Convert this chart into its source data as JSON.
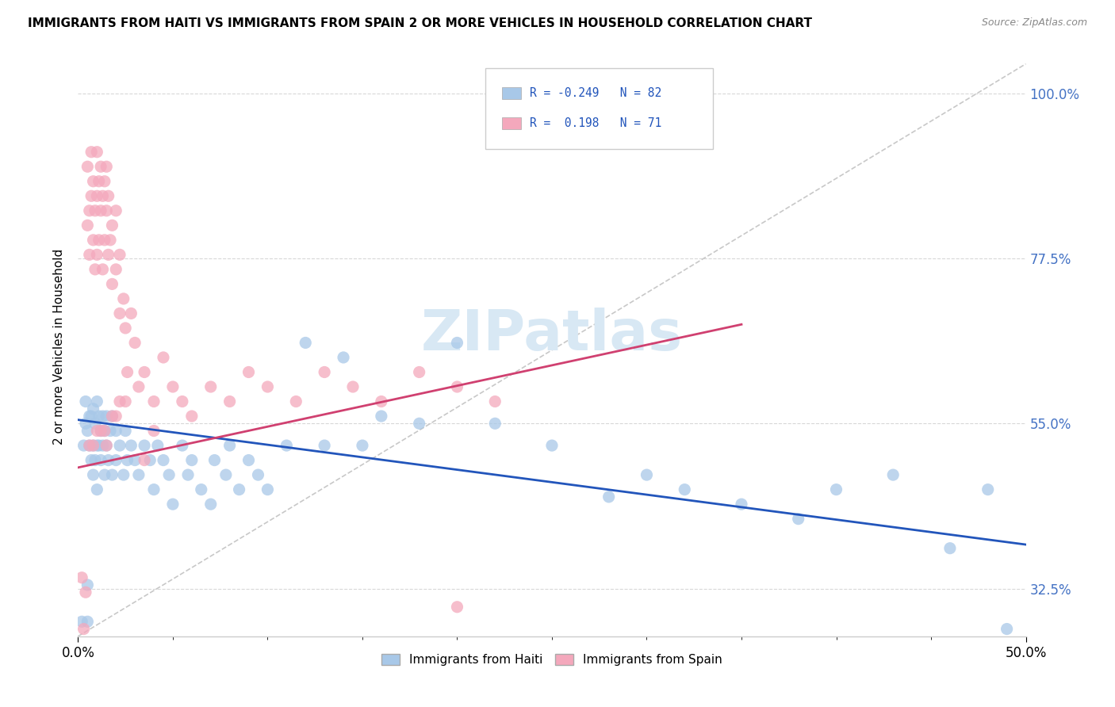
{
  "title": "IMMIGRANTS FROM HAITI VS IMMIGRANTS FROM SPAIN 2 OR MORE VEHICLES IN HOUSEHOLD CORRELATION CHART",
  "source": "Source: ZipAtlas.com",
  "ylabel_label": "2 or more Vehicles in Household",
  "legend_label1": "Immigrants from Haiti",
  "legend_label2": "Immigrants from Spain",
  "color_haiti": "#a8c8e8",
  "color_spain": "#f4a8bc",
  "color_haiti_line": "#2255bb",
  "color_spain_line": "#d04070",
  "color_diag_line": "#c8c8c8",
  "xlim_min": 0.0,
  "xlim_max": 0.5,
  "ylim_min": 0.26,
  "ylim_max": 1.05,
  "y_tick_vals": [
    0.325,
    0.55,
    0.775,
    1.0
  ],
  "y_tick_labels": [
    "32.5%",
    "55.0%",
    "77.5%",
    "100.0%"
  ],
  "x_tick_vals": [
    0.0,
    0.5
  ],
  "x_tick_labels": [
    "0.0%",
    "50.0%"
  ],
  "x_minor_ticks": [
    0.05,
    0.1,
    0.15,
    0.2,
    0.25,
    0.3,
    0.35,
    0.4,
    0.45
  ],
  "haiti_line_x": [
    0.0,
    0.5
  ],
  "haiti_line_y": [
    0.555,
    0.385
  ],
  "spain_line_x": [
    0.0,
    0.35
  ],
  "spain_line_y": [
    0.49,
    0.685
  ],
  "diag_line_x": [
    0.0,
    0.5
  ],
  "diag_line_y": [
    0.26,
    1.04
  ],
  "haiti_x": [
    0.002,
    0.003,
    0.004,
    0.004,
    0.005,
    0.005,
    0.005,
    0.006,
    0.006,
    0.007,
    0.007,
    0.008,
    0.008,
    0.008,
    0.009,
    0.009,
    0.01,
    0.01,
    0.01,
    0.011,
    0.011,
    0.012,
    0.012,
    0.013,
    0.013,
    0.014,
    0.014,
    0.015,
    0.015,
    0.016,
    0.017,
    0.018,
    0.018,
    0.02,
    0.02,
    0.022,
    0.024,
    0.025,
    0.026,
    0.028,
    0.03,
    0.032,
    0.035,
    0.038,
    0.04,
    0.042,
    0.045,
    0.048,
    0.05,
    0.055,
    0.058,
    0.06,
    0.065,
    0.07,
    0.072,
    0.078,
    0.08,
    0.085,
    0.09,
    0.095,
    0.1,
    0.11,
    0.12,
    0.13,
    0.14,
    0.15,
    0.16,
    0.18,
    0.2,
    0.22,
    0.25,
    0.28,
    0.3,
    0.32,
    0.35,
    0.38,
    0.4,
    0.43,
    0.46,
    0.48,
    0.49,
    0.495
  ],
  "haiti_y": [
    0.28,
    0.52,
    0.55,
    0.58,
    0.28,
    0.33,
    0.54,
    0.52,
    0.56,
    0.5,
    0.56,
    0.48,
    0.52,
    0.57,
    0.5,
    0.55,
    0.46,
    0.52,
    0.58,
    0.52,
    0.56,
    0.5,
    0.54,
    0.52,
    0.56,
    0.48,
    0.54,
    0.52,
    0.56,
    0.5,
    0.54,
    0.48,
    0.56,
    0.5,
    0.54,
    0.52,
    0.48,
    0.54,
    0.5,
    0.52,
    0.5,
    0.48,
    0.52,
    0.5,
    0.46,
    0.52,
    0.5,
    0.48,
    0.44,
    0.52,
    0.48,
    0.5,
    0.46,
    0.44,
    0.5,
    0.48,
    0.52,
    0.46,
    0.5,
    0.48,
    0.46,
    0.52,
    0.66,
    0.52,
    0.64,
    0.52,
    0.56,
    0.55,
    0.66,
    0.55,
    0.52,
    0.45,
    0.48,
    0.46,
    0.44,
    0.42,
    0.46,
    0.48,
    0.38,
    0.46,
    0.27,
    0.24
  ],
  "spain_x": [
    0.002,
    0.003,
    0.004,
    0.005,
    0.005,
    0.006,
    0.006,
    0.007,
    0.007,
    0.008,
    0.008,
    0.009,
    0.009,
    0.01,
    0.01,
    0.01,
    0.011,
    0.011,
    0.012,
    0.012,
    0.013,
    0.013,
    0.014,
    0.014,
    0.015,
    0.015,
    0.016,
    0.016,
    0.017,
    0.018,
    0.018,
    0.02,
    0.02,
    0.022,
    0.022,
    0.024,
    0.025,
    0.026,
    0.028,
    0.03,
    0.032,
    0.035,
    0.04,
    0.045,
    0.05,
    0.055,
    0.06,
    0.07,
    0.08,
    0.09,
    0.1,
    0.115,
    0.13,
    0.145,
    0.16,
    0.18,
    0.2,
    0.22,
    0.2,
    0.035,
    0.04,
    0.02,
    0.025,
    0.015,
    0.012,
    0.008,
    0.01,
    0.006,
    0.014,
    0.018,
    0.022
  ],
  "spain_y": [
    0.34,
    0.27,
    0.32,
    0.82,
    0.9,
    0.78,
    0.84,
    0.86,
    0.92,
    0.8,
    0.88,
    0.76,
    0.84,
    0.78,
    0.86,
    0.92,
    0.8,
    0.88,
    0.84,
    0.9,
    0.86,
    0.76,
    0.88,
    0.8,
    0.84,
    0.9,
    0.78,
    0.86,
    0.8,
    0.74,
    0.82,
    0.76,
    0.84,
    0.7,
    0.78,
    0.72,
    0.68,
    0.62,
    0.7,
    0.66,
    0.6,
    0.62,
    0.58,
    0.64,
    0.6,
    0.58,
    0.56,
    0.6,
    0.58,
    0.62,
    0.6,
    0.58,
    0.62,
    0.6,
    0.58,
    0.62,
    0.6,
    0.58,
    0.3,
    0.5,
    0.54,
    0.56,
    0.58,
    0.52,
    0.54,
    0.52,
    0.54,
    0.52,
    0.54,
    0.56,
    0.58
  ],
  "background_color": "#ffffff",
  "watermark_text": "ZIPatlas",
  "watermark_color": "#d8e8f4"
}
